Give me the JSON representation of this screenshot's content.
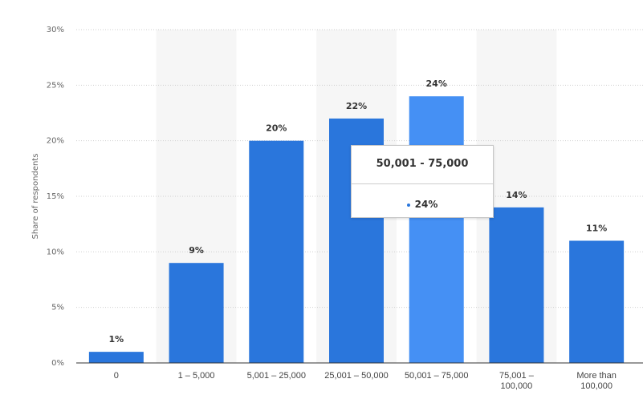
{
  "chart_data": {
    "type": "bar",
    "y_label": "Share of respondents",
    "categories": [
      "0",
      "1 – 5,000",
      "5,001 – 25,000",
      "25,001 – 50,000",
      "50,001 – 75,000",
      "75,001 – 100,000",
      "More than 100,000"
    ],
    "values": [
      1,
      9,
      20,
      22,
      24,
      14,
      11
    ],
    "value_labels": [
      "1%",
      "9%",
      "20%",
      "22%",
      "24%",
      "14%",
      "11%"
    ],
    "colors": [
      "#2a76dc",
      "#2a76dc",
      "#2a76dc",
      "#2a76dc",
      "#4590f4",
      "#2a76dc",
      "#2a76dc"
    ],
    "ylim": [
      0,
      30
    ],
    "yticks": [
      {
        "value": 0,
        "label": "0%"
      },
      {
        "value": 5,
        "label": "5%"
      },
      {
        "value": 10,
        "label": "10%"
      },
      {
        "value": 15,
        "label": "15%"
      },
      {
        "value": 20,
        "label": "20%"
      },
      {
        "value": 25,
        "label": "25%"
      },
      {
        "value": 30,
        "label": "30%"
      }
    ],
    "grid": true,
    "tooltip": {
      "title": "50,001 - 75,000",
      "value_label": "24%"
    }
  }
}
